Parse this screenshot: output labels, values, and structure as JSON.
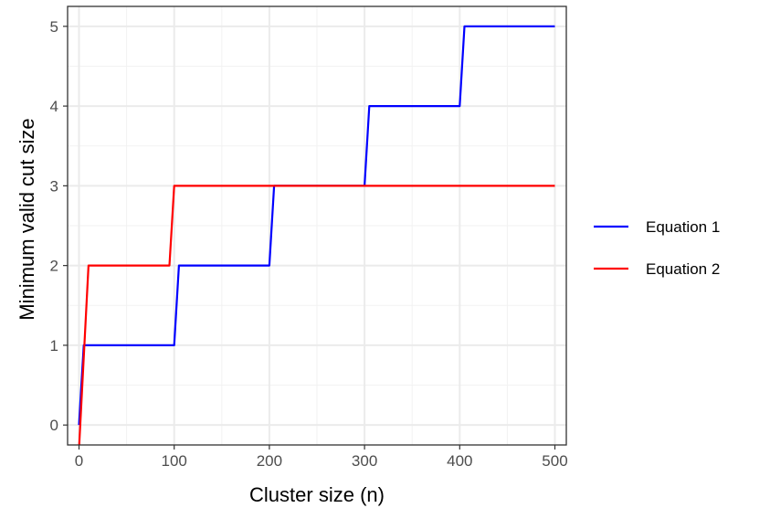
{
  "chart_data": {
    "type": "line",
    "xlabel": "Cluster size (n)",
    "ylabel": "Minimum valid cut size",
    "xlim": [
      -12,
      512
    ],
    "ylim": [
      -0.25,
      5.25
    ],
    "x_ticks": [
      0,
      100,
      200,
      300,
      400,
      500
    ],
    "y_ticks": [
      0,
      1,
      2,
      3,
      4,
      5
    ],
    "x_tick_labels": [
      "0",
      "100",
      "200",
      "300",
      "400",
      "500"
    ],
    "y_tick_labels": [
      "0",
      "1",
      "2",
      "3",
      "4",
      "5"
    ],
    "x_minor": [
      50,
      150,
      250,
      350,
      450
    ],
    "y_minor": [
      0.5,
      1.5,
      2.5,
      3.5,
      4.5
    ],
    "grid": true,
    "legend_position": "right",
    "series": [
      {
        "name": "Equation 1",
        "color": "#0000ff",
        "points": [
          [
            0,
            0
          ],
          [
            5,
            1
          ],
          [
            100,
            1
          ],
          [
            105,
            2
          ],
          [
            200,
            2
          ],
          [
            205,
            3
          ],
          [
            300,
            3
          ],
          [
            305,
            4
          ],
          [
            400,
            4
          ],
          [
            405,
            5
          ],
          [
            500,
            5
          ]
        ]
      },
      {
        "name": "Equation 2",
        "color": "#ff0000",
        "points": [
          [
            0,
            -0.3
          ],
          [
            10,
            2
          ],
          [
            95,
            2
          ],
          [
            100,
            3
          ],
          [
            500,
            3
          ]
        ]
      }
    ]
  }
}
